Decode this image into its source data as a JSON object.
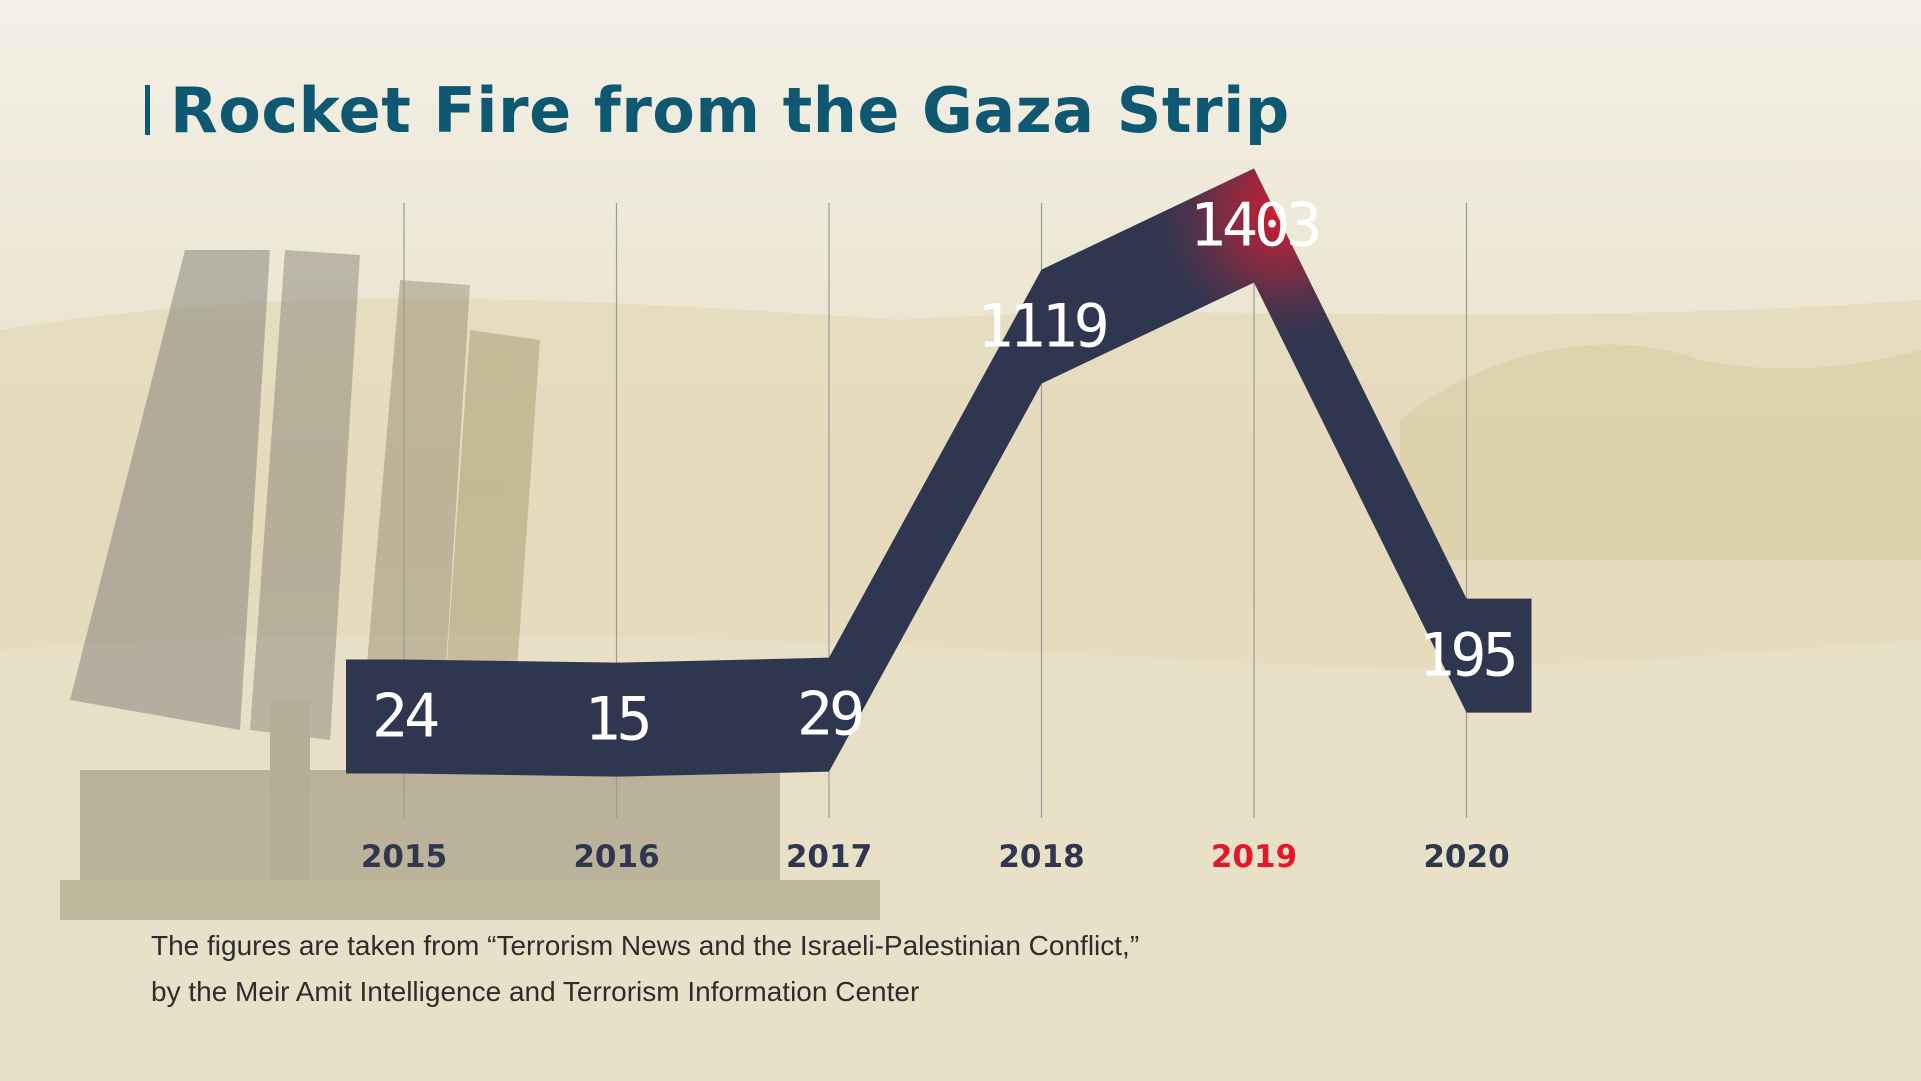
{
  "colors": {
    "title": "#0f5872",
    "ribbon": "#2f3650",
    "value_text": "#ffffff",
    "tick_text": "#2f3650",
    "highlight": "#e8162b",
    "gridline": "#9a9a9a"
  },
  "chart_data": {
    "type": "line",
    "title": "Rocket Fire from the Gaza Strip",
    "categories": [
      "2015",
      "2016",
      "2017",
      "2018",
      "2019",
      "2020"
    ],
    "values": [
      24,
      15,
      29,
      1119,
      1403,
      195
    ],
    "highlight_category": "2019",
    "xlabel": "",
    "ylabel": "",
    "grid": "vertical",
    "legend": "none"
  },
  "caption": {
    "line1": "The figures are taken from “Terrorism News and the Israeli-Palestinian Conflict,”",
    "line2": "by the Meir Amit Intelligence and Terrorism Information Center"
  }
}
